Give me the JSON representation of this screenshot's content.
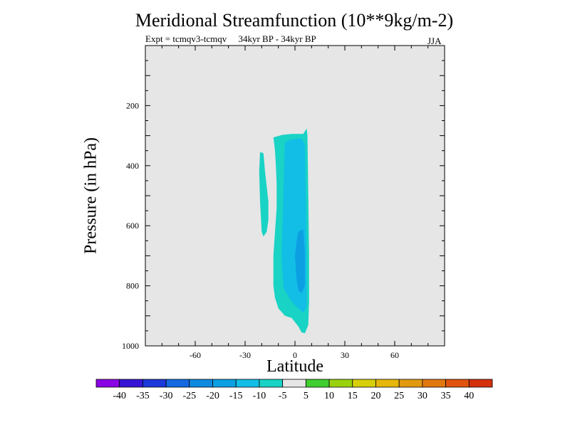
{
  "chart_data": {
    "type": "contour",
    "title": "Meridional Streamfunction (10**9kg/m-2)",
    "subtitle_left": "Expt = tcmqv3-tcmqv     34kyr BP - 34kyr BP",
    "subtitle_right": "JJA",
    "xlabel": "Latitude",
    "ylabel": "Pressure (in hPa)",
    "xlim": [
      -90,
      90
    ],
    "ylim": [
      1000,
      0
    ],
    "x_ticks": [
      -60,
      -30,
      0,
      30,
      60
    ],
    "y_ticks": [
      200,
      400,
      600,
      800,
      1000
    ],
    "background_color": "#e6e6e6",
    "contour_regions": [
      {
        "level": "-10",
        "color": "#19d3c5",
        "polygon": [
          [
            -13,
            306
          ],
          [
            -8,
            298
          ],
          [
            -2,
            294
          ],
          [
            5,
            294
          ],
          [
            7,
            276
          ],
          [
            7.5,
            298
          ],
          [
            8,
            500
          ],
          [
            8.5,
            700
          ],
          [
            8.5,
            850
          ],
          [
            8,
            930
          ],
          [
            6,
            958
          ],
          [
            4,
            955
          ],
          [
            2,
            935
          ],
          [
            -2,
            907
          ],
          [
            -6,
            900
          ],
          [
            -10,
            875
          ],
          [
            -12,
            840
          ],
          [
            -13,
            800
          ],
          [
            -13,
            700
          ],
          [
            -12,
            620
          ],
          [
            -11,
            540
          ],
          [
            -11,
            460
          ],
          [
            -11.5,
            400
          ],
          [
            -12,
            350
          ]
        ]
      },
      {
        "level": "-10",
        "color": "#19d3c5",
        "polygon": [
          [
            -21,
            355
          ],
          [
            -19,
            358
          ],
          [
            -18,
            420
          ],
          [
            -16,
            520
          ],
          [
            -16,
            580
          ],
          [
            -17,
            620
          ],
          [
            -19,
            636
          ],
          [
            -20,
            620
          ],
          [
            -21,
            520
          ],
          [
            -21.5,
            420
          ]
        ]
      },
      {
        "level": "-15",
        "color": "#12bde6",
        "polygon": [
          [
            -6,
            322
          ],
          [
            -2,
            312
          ],
          [
            4,
            310
          ],
          [
            6,
            330
          ],
          [
            6.5,
            500
          ],
          [
            7,
            700
          ],
          [
            7,
            870
          ],
          [
            5,
            890
          ],
          [
            1,
            870
          ],
          [
            -3,
            845
          ],
          [
            -7,
            805
          ],
          [
            -8,
            700
          ],
          [
            -7.5,
            600
          ],
          [
            -7,
            500
          ],
          [
            -6.5,
            400
          ]
        ]
      },
      {
        "level": "-20",
        "color": "#0ca0e3",
        "polygon": [
          [
            2,
            620
          ],
          [
            5,
            612
          ],
          [
            6,
            690
          ],
          [
            6,
            800
          ],
          [
            4,
            825
          ],
          [
            2,
            815
          ],
          [
            1,
            780
          ],
          [
            0,
            700
          ],
          [
            1,
            650
          ]
        ]
      }
    ],
    "colorbar": {
      "labels": [
        "-40",
        "-35",
        "-30",
        "-25",
        "-20",
        "-15",
        "-10",
        "-5",
        "5",
        "10",
        "15",
        "20",
        "25",
        "30",
        "35",
        "40"
      ],
      "colors": [
        "#8a05e3",
        "#3714d4",
        "#1d38d9",
        "#1468e0",
        "#0d8ae0",
        "#0ca0e3",
        "#12bde6",
        "#19d3c5",
        "#e6e6e6",
        "#3fcf30",
        "#99d20d",
        "#d6cf0a",
        "#e6b70a",
        "#e29910",
        "#e0780f",
        "#e05410",
        "#d4300e"
      ]
    }
  }
}
